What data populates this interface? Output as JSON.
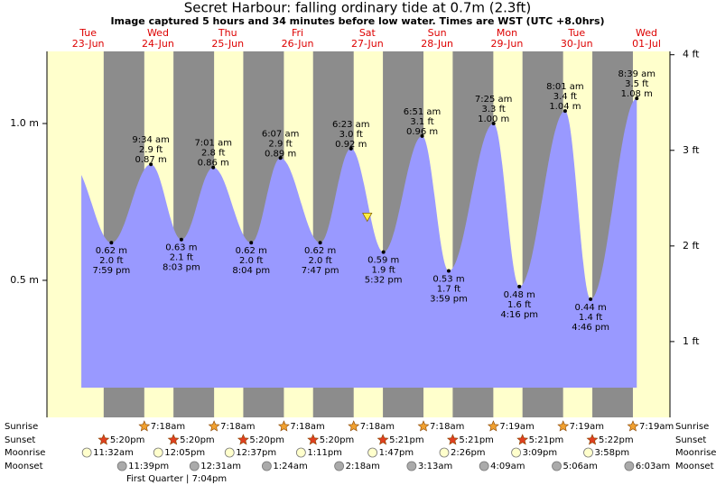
{
  "chart_data": {
    "type": "tide",
    "title": "Secret Harbour: falling  ordinary tide at 0.7m (2.3ft)",
    "subtitle": "Image captured 5 hours and 34 minutes before low water. Times are WST (UTC +8.0hrs)",
    "ylim": [
      0.063,
      1.23
    ],
    "yticks": [
      {
        "value": 0.5,
        "label": "0.5 m"
      },
      {
        "value": 1.0,
        "label": "1.0 m"
      }
    ],
    "y2lim": [
      0.207,
      4.035
    ],
    "y2ticks": [
      {
        "value": 1,
        "label": "1 ft"
      },
      {
        "value": 2,
        "label": "2 ft"
      },
      {
        "value": 3,
        "label": "3 ft"
      },
      {
        "value": 4,
        "label": "4 ft"
      }
    ],
    "colors": {
      "day": "#ffffcc",
      "night": "#8c8c8c",
      "tide": "#9999ff",
      "sunrise": "#f0a030",
      "sunset": "#e04020",
      "moonrise": "#ffffcc",
      "moonset": "#aaaaaa",
      "current": "#ffee44"
    },
    "row_labels": {
      "sunrise": "Sunrise",
      "sunset": "Sunset",
      "moonrise": "Moonrise",
      "moonset": "Moonset"
    },
    "moon_phase": "First Quarter | 7:04pm",
    "days": [
      {
        "name": "Tue",
        "date": "23-Jun",
        "sunrise": null,
        "sunset": "5:20pm",
        "moonrise": "11:32am",
        "moonset": "11:39pm"
      },
      {
        "name": "Wed",
        "date": "24-Jun",
        "sunrise": "7:18am",
        "sunset": "5:20pm",
        "moonrise": "12:05pm",
        "moonset": null
      },
      {
        "name": "Thu",
        "date": "25-Jun",
        "sunrise": "7:18am",
        "sunset": "5:20pm",
        "moonrise": "12:37pm",
        "moonset": "12:31am"
      },
      {
        "name": "Fri",
        "date": "26-Jun",
        "sunrise": "7:18am",
        "sunset": "5:20pm",
        "moonrise": "1:11pm",
        "moonset": "1:24am"
      },
      {
        "name": "Sat",
        "date": "27-Jun",
        "sunrise": "7:18am",
        "sunset": "5:21pm",
        "moonrise": "1:47pm",
        "moonset": "2:18am"
      },
      {
        "name": "Sun",
        "date": "28-Jun",
        "sunrise": "7:18am",
        "sunset": "5:21pm",
        "moonrise": "2:26pm",
        "moonset": "3:13am"
      },
      {
        "name": "Mon",
        "date": "29-Jun",
        "sunrise": "7:19am",
        "sunset": "5:21pm",
        "moonrise": "3:09pm",
        "moonset": "4:09am"
      },
      {
        "name": "Tue",
        "date": "30-Jun",
        "sunrise": "7:19am",
        "sunset": "5:22pm",
        "moonrise": "3:58pm",
        "moonset": "5:06am"
      },
      {
        "name": "Wed",
        "date": "01-Jul",
        "sunrise": "7:19am",
        "sunset": null,
        "moonrise": null,
        "moonset": "6:03am"
      }
    ],
    "extremes": [
      {
        "date": "23-Jun",
        "time": "7:59 pm",
        "value": 0.62,
        "value_label": "0.62 m",
        "ft_label": "2.0 ft"
      },
      {
        "date": "24-Jun",
        "time": "9:34 am",
        "value": 0.87,
        "value_label": "0.87 m",
        "ft_label": "2.9 ft"
      },
      {
        "date": "24-Jun",
        "time": "8:03 pm",
        "value": 0.63,
        "value_label": "0.63 m",
        "ft_label": "2.1 ft"
      },
      {
        "date": "25-Jun",
        "time": "7:01 am",
        "value": 0.86,
        "value_label": "0.86 m",
        "ft_label": "2.8 ft"
      },
      {
        "date": "25-Jun",
        "time": "8:04 pm",
        "value": 0.62,
        "value_label": "0.62 m",
        "ft_label": "2.0 ft"
      },
      {
        "date": "26-Jun",
        "time": "6:07 am",
        "value": 0.89,
        "value_label": "0.89 m",
        "ft_label": "2.9 ft"
      },
      {
        "date": "26-Jun",
        "time": "7:47 pm",
        "value": 0.62,
        "value_label": "0.62 m",
        "ft_label": "2.0 ft"
      },
      {
        "date": "27-Jun",
        "time": "6:23 am",
        "value": 0.92,
        "value_label": "0.92 m",
        "ft_label": "3.0 ft"
      },
      {
        "date": "27-Jun",
        "time": "5:32 pm",
        "value": 0.59,
        "value_label": "0.59 m",
        "ft_label": "1.9 ft"
      },
      {
        "date": "28-Jun",
        "time": "6:51 am",
        "value": 0.96,
        "value_label": "0.96 m",
        "ft_label": "3.1 ft"
      },
      {
        "date": "28-Jun",
        "time": "3:59 pm",
        "value": 0.53,
        "value_label": "0.53 m",
        "ft_label": "1.7 ft"
      },
      {
        "date": "29-Jun",
        "time": "7:25 am",
        "value": 1.0,
        "value_label": "1.00 m",
        "ft_label": "3.3 ft"
      },
      {
        "date": "29-Jun",
        "time": "4:16 pm",
        "value": 0.48,
        "value_label": "0.48 m",
        "ft_label": "1.6 ft"
      },
      {
        "date": "30-Jun",
        "time": "8:01 am",
        "value": 1.04,
        "value_label": "1.04 m",
        "ft_label": "3.4 ft"
      },
      {
        "date": "30-Jun",
        "time": "4:46 pm",
        "value": 0.44,
        "value_label": "0.44 m",
        "ft_label": "1.4 ft"
      },
      {
        "date": "01-Jul",
        "time": "8:39 am",
        "value": 1.08,
        "value_label": "1.08 m",
        "ft_label": "3.5 ft"
      }
    ],
    "current": {
      "date": "27-Jun",
      "time": "11:58 am",
      "value": 0.7
    }
  }
}
